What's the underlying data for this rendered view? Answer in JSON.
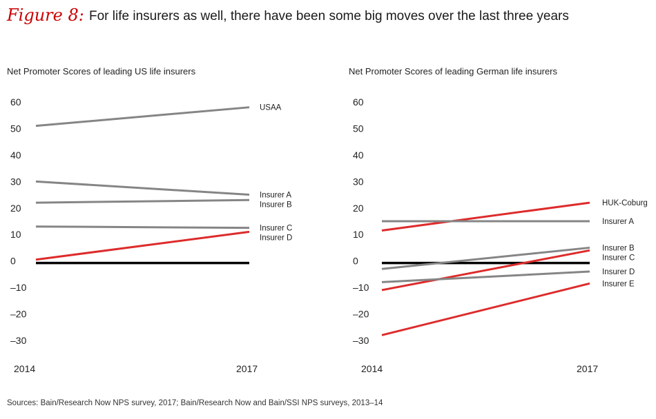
{
  "figure": {
    "label": "Figure 8:",
    "title": "For life insurers as well, there have been some big moves over the last three years",
    "source": "Sources: Bain/Research Now NPS survey, 2017; Bain/Research Now and Bain/SSI NPS surveys, 2013–14"
  },
  "colors": {
    "gray": "#858585",
    "red": "#dd2b2b",
    "zero_line": "#000000"
  },
  "chart_data": [
    {
      "type": "line",
      "title": "Net Promoter Scores of leading US life insurers",
      "x": [
        "2014",
        "2017"
      ],
      "ylim": [
        -30,
        60
      ],
      "yticks": [
        "60",
        "50",
        "40",
        "30",
        "20",
        "10",
        "0",
        "–10",
        "–20",
        "–30"
      ],
      "zero_line": true,
      "series": [
        {
          "name": "USAA",
          "values": [
            51,
            58
          ],
          "color": "gray"
        },
        {
          "name": "Insurer A",
          "values": [
            30,
            25
          ],
          "color": "gray"
        },
        {
          "name": "Insurer B",
          "values": [
            22,
            23
          ],
          "color": "gray"
        },
        {
          "name": "Insurer C",
          "values": [
            13,
            12.5
          ],
          "color": "gray"
        },
        {
          "name": "Insurer D",
          "values": [
            0.5,
            11
          ],
          "color": "red"
        }
      ]
    },
    {
      "type": "line",
      "title": "Net Promoter Scores of leading German life insurers",
      "x": [
        "2014",
        "2017"
      ],
      "ylim": [
        -30,
        60
      ],
      "yticks": [
        "60",
        "50",
        "40",
        "30",
        "20",
        "10",
        "0",
        "–10",
        "–20",
        "–30"
      ],
      "zero_line": true,
      "series": [
        {
          "name": "HUK-Coburg",
          "values": [
            11.5,
            22
          ],
          "color": "red"
        },
        {
          "name": "Insurer A",
          "values": [
            15,
            15
          ],
          "color": "gray"
        },
        {
          "name": "Insurer B",
          "values": [
            -3,
            5
          ],
          "color": "gray"
        },
        {
          "name": "Insurer C",
          "values": [
            -11,
            4
          ],
          "color": "red"
        },
        {
          "name": "Insurer D",
          "values": [
            -8,
            -4
          ],
          "color": "gray"
        },
        {
          "name": "Insurer E",
          "values": [
            -28,
            -8.5
          ],
          "color": "red"
        }
      ]
    }
  ]
}
